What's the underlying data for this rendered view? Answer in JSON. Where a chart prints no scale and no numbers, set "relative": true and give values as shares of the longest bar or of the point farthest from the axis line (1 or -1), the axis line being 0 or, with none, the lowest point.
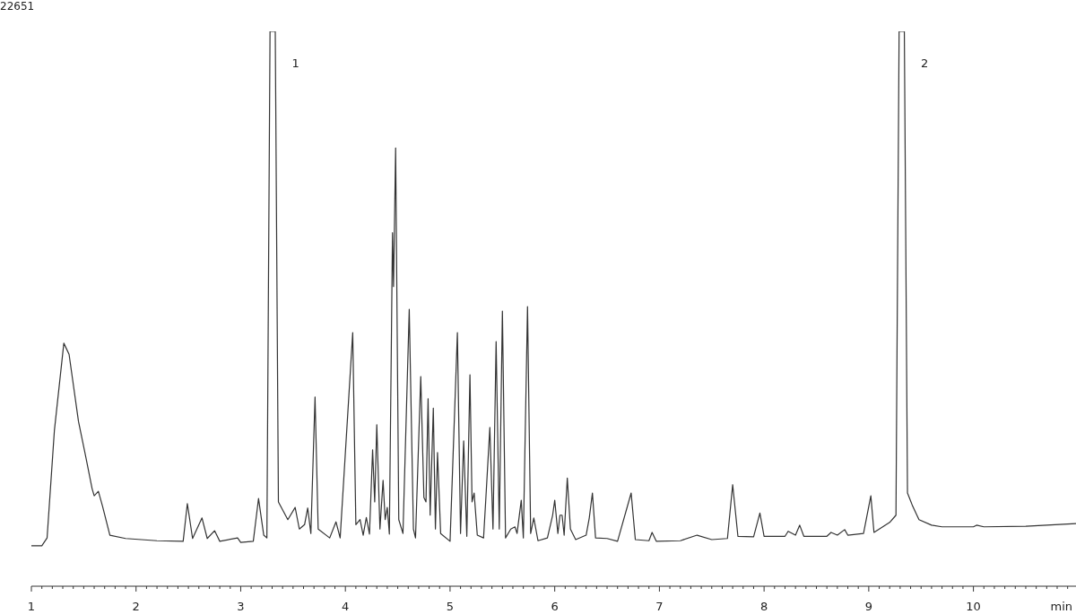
{
  "chart_data": {
    "type": "line",
    "relative": true,
    "xlabel": "min",
    "xlim": [
      1,
      10.98
    ],
    "xticks": [
      1,
      2,
      3,
      4,
      5,
      6,
      7,
      8,
      9,
      10
    ],
    "grid": false,
    "line_style": "solid",
    "annotations": [
      "22651",
      {
        "text": "1",
        "x": 3.3,
        "y": 1
      },
      {
        "text": "2",
        "x": 9.31,
        "y": 1
      }
    ],
    "series": [
      {
        "color": "#333333",
        "x": [
          1.0,
          1.1,
          1.15,
          1.22,
          1.31,
          1.36,
          1.45,
          1.52,
          1.58,
          1.6,
          1.64,
          1.68,
          1.75,
          1.9,
          2.2,
          2.45,
          2.49,
          2.54,
          2.63,
          2.68,
          2.75,
          2.8,
          2.97,
          3.0,
          3.12,
          3.17,
          3.22,
          3.25,
          3.28,
          3.33,
          3.36,
          3.45,
          3.52,
          3.56,
          3.61,
          3.64,
          3.67,
          3.71,
          3.74,
          3.85,
          3.91,
          3.95,
          4.07,
          4.1,
          4.14,
          4.17,
          4.2,
          4.23,
          4.26,
          4.28,
          4.3,
          4.33,
          4.36,
          4.38,
          4.4,
          4.42,
          4.45,
          4.46,
          4.48,
          4.51,
          4.55,
          4.61,
          4.65,
          4.67,
          4.72,
          4.75,
          4.77,
          4.79,
          4.81,
          4.84,
          4.86,
          4.88,
          4.91,
          5.0,
          5.07,
          5.1,
          5.13,
          5.16,
          5.19,
          5.21,
          5.23,
          5.26,
          5.32,
          5.34,
          5.38,
          5.41,
          5.44,
          5.47,
          5.5,
          5.53,
          5.58,
          5.62,
          5.64,
          5.68,
          5.7,
          5.74,
          5.77,
          5.8,
          5.84,
          5.93,
          5.98,
          6.0,
          6.03,
          6.05,
          6.07,
          6.09,
          6.12,
          6.15,
          6.2,
          6.3,
          6.33,
          6.36,
          6.39,
          6.5,
          6.6,
          6.73,
          6.77,
          6.9,
          6.93,
          6.97,
          7.2,
          7.36,
          7.5,
          7.65,
          7.7,
          7.75,
          7.9,
          7.96,
          8.0,
          8.2,
          8.23,
          8.3,
          8.34,
          8.38,
          8.6,
          8.64,
          8.7,
          8.77,
          8.8,
          8.95,
          9.02,
          9.05,
          9.1,
          9.2,
          9.26,
          9.29,
          9.34,
          9.37,
          9.42,
          9.48,
          9.6,
          9.7,
          10.0,
          10.03,
          10.1,
          10.5,
          10.98
        ],
        "values": [
          0.073,
          0.073,
          0.087,
          0.281,
          0.438,
          0.418,
          0.297,
          0.233,
          0.176,
          0.163,
          0.171,
          0.144,
          0.092,
          0.086,
          0.082,
          0.081,
          0.149,
          0.086,
          0.123,
          0.086,
          0.1,
          0.081,
          0.087,
          0.079,
          0.081,
          0.158,
          0.092,
          0.087,
          1,
          1,
          0.152,
          0.12,
          0.142,
          0.103,
          0.111,
          0.141,
          0.095,
          0.341,
          0.103,
          0.087,
          0.116,
          0.087,
          0.457,
          0.111,
          0.12,
          0.092,
          0.124,
          0.094,
          0.246,
          0.152,
          0.291,
          0.103,
          0.191,
          0.12,
          0.142,
          0.094,
          0.637,
          0.54,
          0.79,
          0.12,
          0.095,
          0.499,
          0.103,
          0.087,
          0.378,
          0.16,
          0.152,
          0.338,
          0.128,
          0.321,
          0.103,
          0.241,
          0.095,
          0.081,
          0.457,
          0.095,
          0.262,
          0.09,
          0.381,
          0.152,
          0.168,
          0.092,
          0.087,
          0.152,
          0.286,
          0.103,
          0.441,
          0.103,
          0.496,
          0.087,
          0.103,
          0.107,
          0.095,
          0.155,
          0.087,
          0.504,
          0.095,
          0.123,
          0.082,
          0.087,
          0.128,
          0.155,
          0.095,
          0.128,
          0.128,
          0.092,
          0.195,
          0.103,
          0.084,
          0.092,
          0.123,
          0.168,
          0.087,
          0.086,
          0.081,
          0.168,
          0.084,
          0.082,
          0.097,
          0.081,
          0.082,
          0.092,
          0.084,
          0.086,
          0.183,
          0.09,
          0.089,
          0.132,
          0.09,
          0.09,
          0.099,
          0.092,
          0.11,
          0.09,
          0.09,
          0.097,
          0.092,
          0.102,
          0.092,
          0.095,
          0.163,
          0.097,
          0.103,
          0.115,
          0.128,
          1,
          1,
          0.168,
          0.144,
          0.12,
          0.11,
          0.107,
          0.107,
          0.11,
          0.107,
          0.108,
          0.113
        ]
      }
    ]
  }
}
